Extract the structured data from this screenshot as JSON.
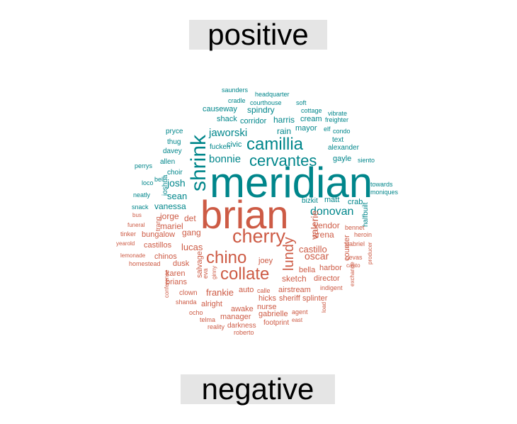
{
  "chart_data": {
    "type": "comparison_wordcloud",
    "groups": [
      {
        "name": "positive",
        "color": "#00868B"
      },
      {
        "name": "negative",
        "color": "#CD5B45"
      }
    ],
    "words": [
      {
        "text": "meridian",
        "group": "positive",
        "size": 60
      },
      {
        "text": "shrink",
        "group": "positive",
        "size": 30
      },
      {
        "text": "camillia",
        "group": "positive",
        "size": 24
      },
      {
        "text": "cervantes",
        "group": "positive",
        "size": 22
      },
      {
        "text": "bonnie",
        "group": "positive",
        "size": 15
      },
      {
        "text": "donovan",
        "group": "positive",
        "size": 16
      },
      {
        "text": "jaworski",
        "group": "positive",
        "size": 15
      },
      {
        "text": "josh",
        "group": "positive",
        "size": 14
      },
      {
        "text": "sean",
        "group": "positive",
        "size": 13
      },
      {
        "text": "vanessa",
        "group": "positive",
        "size": 12
      },
      {
        "text": "causeway",
        "group": "positive",
        "size": 11
      },
      {
        "text": "spindry",
        "group": "positive",
        "size": 12
      },
      {
        "text": "harris",
        "group": "positive",
        "size": 12
      },
      {
        "text": "rain",
        "group": "positive",
        "size": 12
      },
      {
        "text": "mayor",
        "group": "positive",
        "size": 11
      },
      {
        "text": "cream",
        "group": "positive",
        "size": 11
      },
      {
        "text": "corridor",
        "group": "positive",
        "size": 11
      },
      {
        "text": "shack",
        "group": "positive",
        "size": 11
      },
      {
        "text": "civic",
        "group": "positive",
        "size": 11
      },
      {
        "text": "fucken",
        "group": "positive",
        "size": 10
      },
      {
        "text": "gayle",
        "group": "positive",
        "size": 11
      },
      {
        "text": "crab",
        "group": "positive",
        "size": 11
      },
      {
        "text": "matt",
        "group": "positive",
        "size": 11
      },
      {
        "text": "bizkit",
        "group": "positive",
        "size": 10
      },
      {
        "text": "halfbuilt",
        "group": "positive",
        "size": 10
      },
      {
        "text": "joshua",
        "group": "positive",
        "size": 10
      },
      {
        "text": "choir",
        "group": "positive",
        "size": 10
      },
      {
        "text": "allen",
        "group": "positive",
        "size": 10
      },
      {
        "text": "thug",
        "group": "positive",
        "size": 10
      },
      {
        "text": "davey",
        "group": "positive",
        "size": 10
      },
      {
        "text": "pryce",
        "group": "positive",
        "size": 10
      },
      {
        "text": "perrys",
        "group": "positive",
        "size": 9
      },
      {
        "text": "loco",
        "group": "positive",
        "size": 9
      },
      {
        "text": "bell",
        "group": "positive",
        "size": 9
      },
      {
        "text": "neatly",
        "group": "positive",
        "size": 9
      },
      {
        "text": "snack",
        "group": "positive",
        "size": 9
      },
      {
        "text": "saunders",
        "group": "positive",
        "size": 9
      },
      {
        "text": "headquarter",
        "group": "positive",
        "size": 9
      },
      {
        "text": "cradle",
        "group": "positive",
        "size": 9
      },
      {
        "text": "courthouse",
        "group": "positive",
        "size": 9
      },
      {
        "text": "soft",
        "group": "positive",
        "size": 9
      },
      {
        "text": "cottage",
        "group": "positive",
        "size": 9
      },
      {
        "text": "vibrate",
        "group": "positive",
        "size": 9
      },
      {
        "text": "freighter",
        "group": "positive",
        "size": 9
      },
      {
        "text": "elf",
        "group": "positive",
        "size": 9
      },
      {
        "text": "condo",
        "group": "positive",
        "size": 9
      },
      {
        "text": "text",
        "group": "positive",
        "size": 10
      },
      {
        "text": "alexander",
        "group": "positive",
        "size": 10
      },
      {
        "text": "siento",
        "group": "positive",
        "size": 9
      },
      {
        "text": "towards",
        "group": "positive",
        "size": 9
      },
      {
        "text": "moniques",
        "group": "positive",
        "size": 9
      },
      {
        "text": "brian",
        "group": "negative",
        "size": 56
      },
      {
        "text": "cherry",
        "group": "negative",
        "size": 27
      },
      {
        "text": "chino",
        "group": "negative",
        "size": 24
      },
      {
        "text": "collate",
        "group": "negative",
        "size": 24
      },
      {
        "text": "lundy",
        "group": "negative",
        "size": 20
      },
      {
        "text": "valerie",
        "group": "negative",
        "size": 14
      },
      {
        "text": "oscar",
        "group": "negative",
        "size": 14
      },
      {
        "text": "castillo",
        "group": "negative",
        "size": 13
      },
      {
        "text": "arena",
        "group": "negative",
        "size": 12
      },
      {
        "text": "vendor",
        "group": "negative",
        "size": 12
      },
      {
        "text": "counter",
        "group": "negative",
        "size": 11
      },
      {
        "text": "jorge",
        "group": "negative",
        "size": 12
      },
      {
        "text": "mariel",
        "group": "negative",
        "size": 12
      },
      {
        "text": "det",
        "group": "negative",
        "size": 12
      },
      {
        "text": "gang",
        "group": "negative",
        "size": 12
      },
      {
        "text": "trang",
        "group": "negative",
        "size": 9
      },
      {
        "text": "bungalow",
        "group": "negative",
        "size": 11
      },
      {
        "text": "lucas",
        "group": "negative",
        "size": 13
      },
      {
        "text": "castillos",
        "group": "negative",
        "size": 11
      },
      {
        "text": "chinos",
        "group": "negative",
        "size": 11
      },
      {
        "text": "dusk",
        "group": "negative",
        "size": 11
      },
      {
        "text": "salvage",
        "group": "negative",
        "size": 11
      },
      {
        "text": "joey",
        "group": "negative",
        "size": 11
      },
      {
        "text": "karen",
        "group": "negative",
        "size": 11
      },
      {
        "text": "brians",
        "group": "negative",
        "size": 11
      },
      {
        "text": "eva",
        "group": "negative",
        "size": 9
      },
      {
        "text": "ginny",
        "group": "negative",
        "size": 8
      },
      {
        "text": "frankie",
        "group": "negative",
        "size": 13
      },
      {
        "text": "auto",
        "group": "negative",
        "size": 11
      },
      {
        "text": "calle",
        "group": "negative",
        "size": 9
      },
      {
        "text": "sketch",
        "group": "negative",
        "size": 12
      },
      {
        "text": "bella",
        "group": "negative",
        "size": 11
      },
      {
        "text": "harbor",
        "group": "negative",
        "size": 11
      },
      {
        "text": "director",
        "group": "negative",
        "size": 11
      },
      {
        "text": "airstream",
        "group": "negative",
        "size": 11
      },
      {
        "text": "indigent",
        "group": "negative",
        "size": 9
      },
      {
        "text": "hicks",
        "group": "negative",
        "size": 11
      },
      {
        "text": "sheriff",
        "group": "negative",
        "size": 11
      },
      {
        "text": "splinter",
        "group": "negative",
        "size": 11
      },
      {
        "text": "nurse",
        "group": "negative",
        "size": 11
      },
      {
        "text": "awake",
        "group": "negative",
        "size": 11
      },
      {
        "text": "gabrielle",
        "group": "negative",
        "size": 11
      },
      {
        "text": "agent",
        "group": "negative",
        "size": 9
      },
      {
        "text": "manager",
        "group": "negative",
        "size": 11
      },
      {
        "text": "alright",
        "group": "negative",
        "size": 11
      },
      {
        "text": "darkness",
        "group": "negative",
        "size": 10
      },
      {
        "text": "footprint",
        "group": "negative",
        "size": 10
      },
      {
        "text": "east",
        "group": "negative",
        "size": 8
      },
      {
        "text": "telma",
        "group": "negative",
        "size": 9
      },
      {
        "text": "reality",
        "group": "negative",
        "size": 9
      },
      {
        "text": "roberto",
        "group": "negative",
        "size": 9
      },
      {
        "text": "ocho",
        "group": "negative",
        "size": 9
      },
      {
        "text": "shanda",
        "group": "negative",
        "size": 9
      },
      {
        "text": "clown",
        "group": "negative",
        "size": 10
      },
      {
        "text": "conference",
        "group": "negative",
        "size": 8
      },
      {
        "text": "homestead",
        "group": "negative",
        "size": 9
      },
      {
        "text": "lemonade",
        "group": "negative",
        "size": 8
      },
      {
        "text": "yearold",
        "group": "negative",
        "size": 8
      },
      {
        "text": "tinker",
        "group": "negative",
        "size": 9
      },
      {
        "text": "funeral",
        "group": "negative",
        "size": 8
      },
      {
        "text": "bus",
        "group": "negative",
        "size": 8
      },
      {
        "text": "bennet",
        "group": "negative",
        "size": 9
      },
      {
        "text": "heroin",
        "group": "negative",
        "size": 9
      },
      {
        "text": "gabriel",
        "group": "negative",
        "size": 9
      },
      {
        "text": "cevas",
        "group": "negative",
        "size": 9
      },
      {
        "text": "canto",
        "group": "negative",
        "size": 8
      },
      {
        "text": "producer",
        "group": "negative",
        "size": 8
      },
      {
        "text": "exchange",
        "group": "negative",
        "size": 8
      },
      {
        "text": "load",
        "group": "negative",
        "size": 8
      }
    ]
  }
}
